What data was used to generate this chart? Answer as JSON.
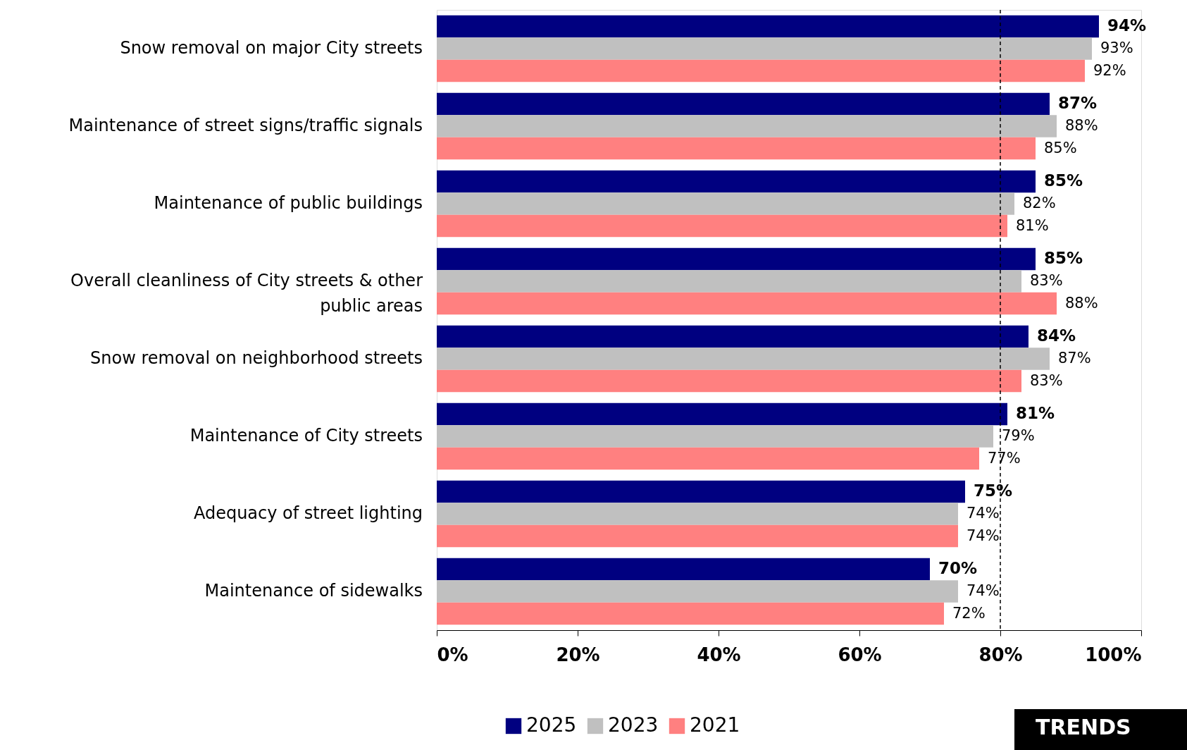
{
  "chart_data": {
    "type": "bar",
    "orientation": "horizontal",
    "categories": [
      "Snow removal on major City streets",
      "Maintenance of street signs/traffic signals",
      "Maintenance of public buildings",
      "Overall cleanliness of City streets & other public areas",
      "Snow removal on neighborhood streets",
      "Maintenance of City streets",
      "Adequacy of street lighting",
      "Maintenance of sidewalks"
    ],
    "series": [
      {
        "name": "2025",
        "color": "#000080",
        "values": [
          94,
          87,
          85,
          85,
          84,
          81,
          75,
          70
        ],
        "value_labels": [
          "94%",
          "87%",
          "85%",
          "85%",
          "84%",
          "81%",
          "75%",
          "70%"
        ]
      },
      {
        "name": "2023",
        "color": "#c0c0c0",
        "values": [
          93,
          88,
          82,
          83,
          87,
          79,
          74,
          74
        ],
        "value_labels": [
          "93%",
          "88%",
          "82%",
          "83%",
          "87%",
          "79%",
          "74%",
          "74%"
        ]
      },
      {
        "name": "2021",
        "color": "#ff8080",
        "values": [
          92,
          85,
          81,
          88,
          83,
          77,
          74,
          72
        ],
        "value_labels": [
          "92%",
          "85%",
          "81%",
          "88%",
          "83%",
          "77%",
          "74%",
          "72%"
        ]
      }
    ],
    "xlim": [
      0,
      100
    ],
    "xticks": [
      {
        "value": 0,
        "label": "0%"
      },
      {
        "value": 20,
        "label": "20%"
      },
      {
        "value": 40,
        "label": "40%"
      },
      {
        "value": 60,
        "label": "60%"
      },
      {
        "value": 80,
        "label": "80%"
      },
      {
        "value": 100,
        "label": "100%"
      }
    ],
    "ref_lines": [
      {
        "axis": "x",
        "value": 80,
        "color": "#000000",
        "line_style": "dashed"
      }
    ],
    "legend": "bottom",
    "annotations": [
      "TRENDS"
    ]
  }
}
